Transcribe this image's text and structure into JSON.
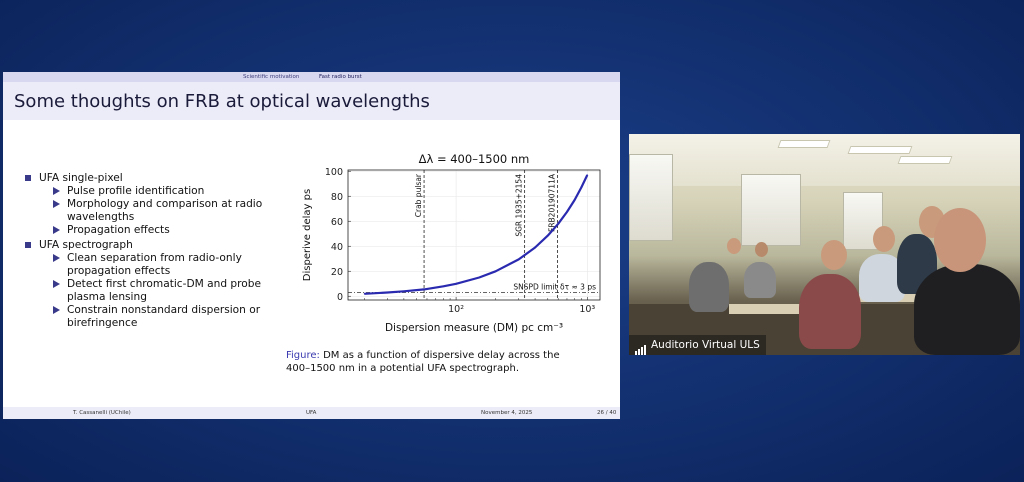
{
  "slide": {
    "nav": [
      "Scientific motivation",
      "Fast radio burst"
    ],
    "title": "Some thoughts on FRB at optical wavelengths",
    "bullets": [
      {
        "label": "UFA single-pixel",
        "sub": [
          "Pulse profile identification",
          "Morphology and comparison at radio wavelengths",
          "Propagation effects"
        ]
      },
      {
        "label": "UFA spectrograph",
        "sub": [
          "Clean separation from radio-only propagation effects",
          "Detect first chromatic-DM and probe plasma lensing",
          "Constrain nonstandard dispersion or birefringence"
        ]
      }
    ],
    "caption_label": "Figure:",
    "caption_text": " DM as a function of dispersive delay across the 400–1500 nm in a potential UFA spectrograph.",
    "footer": {
      "author": "T. Cassanelli  (UChile)",
      "short_title": "UFA",
      "date": "November 4, 2025",
      "page": "26 / 40"
    }
  },
  "video": {
    "label": "Auditorio Virtual ULS"
  },
  "colors": {
    "accent": "#3a3a8a",
    "curve": "#2a2ab0",
    "background": "#163a80"
  },
  "chart_data": {
    "type": "line",
    "title": "Δλ = 400–1500 nm",
    "xlabel": "Dispersion measure (DM) pc cm⁻³",
    "ylabel": "Disperive delay ps",
    "xscale": "log",
    "xlim": [
      15,
      1250
    ],
    "ylim": [
      -3,
      101
    ],
    "xticks": [
      {
        "v": 100,
        "label": "10²"
      },
      {
        "v": 1000,
        "label": "10³"
      }
    ],
    "yticks": [
      0,
      20,
      40,
      60,
      80,
      100
    ],
    "grid": true,
    "series": [
      {
        "x": [
          20,
          30,
          40,
          57,
          80,
          100,
          150,
          200,
          300,
          400,
          500,
          600,
          700,
          800,
          900,
          1000
        ],
        "y": [
          2,
          3,
          4,
          5.5,
          8,
          10,
          15,
          20,
          29.5,
          39,
          48.5,
          58,
          67.5,
          77,
          87,
          97
        ]
      }
    ],
    "vlines": [
      {
        "x": 57,
        "label": "Crab pulsar"
      },
      {
        "x": 333,
        "label": "SGR 1935+2154"
      },
      {
        "x": 594,
        "label": "FRB20190711A"
      }
    ],
    "hline": {
      "y": 3,
      "label": "SNSPD limit δτ ≈ 3 ps"
    }
  }
}
